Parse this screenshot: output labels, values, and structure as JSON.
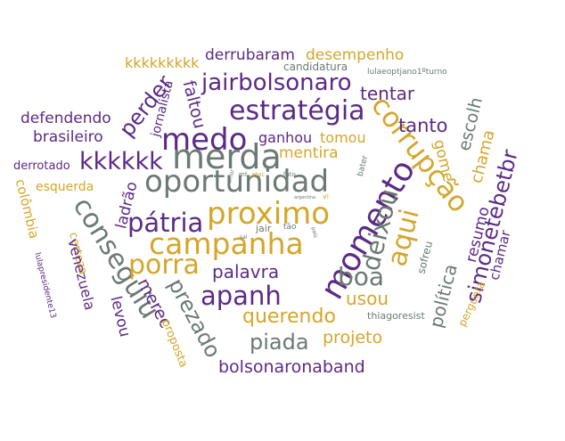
{
  "colors": {
    "purple": "#5b2a86",
    "gold": "#d4a62a",
    "gray": "#6b7a72"
  },
  "words": [
    {
      "text": "derrubaram",
      "color": "purple"
    },
    {
      "text": "desempenho",
      "color": "gold"
    },
    {
      "text": "kkkkkkkkk",
      "color": "gold"
    },
    {
      "text": "candidatura",
      "color": "gray"
    },
    {
      "text": "lulaeoptjano1ºturno",
      "color": "gray"
    },
    {
      "text": "jornalista",
      "color": "purple"
    },
    {
      "text": "jairbolsonaro",
      "color": "purple"
    },
    {
      "text": "faltou",
      "color": "purple"
    },
    {
      "text": "tentar",
      "color": "purple"
    },
    {
      "text": "perder",
      "color": "purple"
    },
    {
      "text": "estratégia",
      "color": "purple"
    },
    {
      "text": "defendendo",
      "color": "purple"
    },
    {
      "text": "corrupção",
      "color": "gold"
    },
    {
      "text": "escolh",
      "color": "gray"
    },
    {
      "text": "brasileiro",
      "color": "purple"
    },
    {
      "text": "medo",
      "color": "purple"
    },
    {
      "text": "ganhou",
      "color": "purple"
    },
    {
      "text": "tomou",
      "color": "gold"
    },
    {
      "text": "tanto",
      "color": "purple"
    },
    {
      "text": "chama",
      "color": "gold"
    },
    {
      "text": "gome",
      "color": "gold"
    },
    {
      "text": "merda",
      "color": "gray"
    },
    {
      "text": "mentira",
      "color": "gold"
    },
    {
      "text": "derrotado",
      "color": "purple"
    },
    {
      "text": "kkkkkk",
      "color": "purple"
    },
    {
      "text": "simonetebetbr",
      "color": "purple"
    },
    {
      "text": "oportunidad",
      "color": "gray"
    },
    {
      "text": "bater",
      "color": "gray"
    },
    {
      "text": "esquerda",
      "color": "gold"
    },
    {
      "text": "colômbia",
      "color": "gold"
    },
    {
      "text": "momento",
      "color": "purple"
    },
    {
      "text": "ladrão",
      "color": "purple"
    },
    {
      "text": "deixou",
      "color": "gray"
    },
    {
      "text": "conseguiu",
      "color": "gray"
    },
    {
      "text": "proximo",
      "color": "gold"
    },
    {
      "text": "aqui",
      "color": "gold"
    },
    {
      "text": "pátria",
      "color": "purple"
    },
    {
      "text": "resumo",
      "color": "purple"
    },
    {
      "text": "campanha",
      "color": "gold"
    },
    {
      "text": "certeza",
      "color": "gold"
    },
    {
      "text": "venezuela",
      "color": "purple"
    },
    {
      "text": "boa",
      "color": "gray"
    },
    {
      "text": "sofreu",
      "color": "gray"
    },
    {
      "text": "chamar",
      "color": "purple"
    },
    {
      "text": "porra",
      "color": "gold"
    },
    {
      "text": "política",
      "color": "gray"
    },
    {
      "text": "palavra",
      "color": "purple"
    },
    {
      "text": "lulapresidente13",
      "color": "purple"
    },
    {
      "text": "prezado",
      "color": "gray"
    },
    {
      "text": "usou",
      "color": "gold"
    },
    {
      "text": "apanh",
      "color": "purple"
    },
    {
      "text": "merec",
      "color": "purple"
    },
    {
      "text": "pergunta",
      "color": "gold"
    },
    {
      "text": "levou",
      "color": "purple"
    },
    {
      "text": "querendo",
      "color": "gold"
    },
    {
      "text": "thiagoresist",
      "color": "gray"
    },
    {
      "text": "piada",
      "color": "gray"
    },
    {
      "text": "projeto",
      "color": "gold"
    },
    {
      "text": "proposta",
      "color": "gold"
    },
    {
      "text": "jair",
      "color": "gray"
    },
    {
      "text": "tão",
      "color": "gray"
    },
    {
      "text": "bolsonaronaband",
      "color": "purple"
    },
    {
      "text": "mt",
      "color": "gray"
    },
    {
      "text": "atac",
      "color": "gold"
    },
    {
      "text": "fato",
      "color": "gray"
    },
    {
      "text": "vi",
      "color": "gold"
    },
    {
      "text": "amor",
      "color": "gray"
    },
    {
      "text": "argentina",
      "color": "gray"
    },
    {
      "text": "país",
      "color": "gray"
    },
    {
      "text": "sai",
      "color": "gray"
    }
  ]
}
